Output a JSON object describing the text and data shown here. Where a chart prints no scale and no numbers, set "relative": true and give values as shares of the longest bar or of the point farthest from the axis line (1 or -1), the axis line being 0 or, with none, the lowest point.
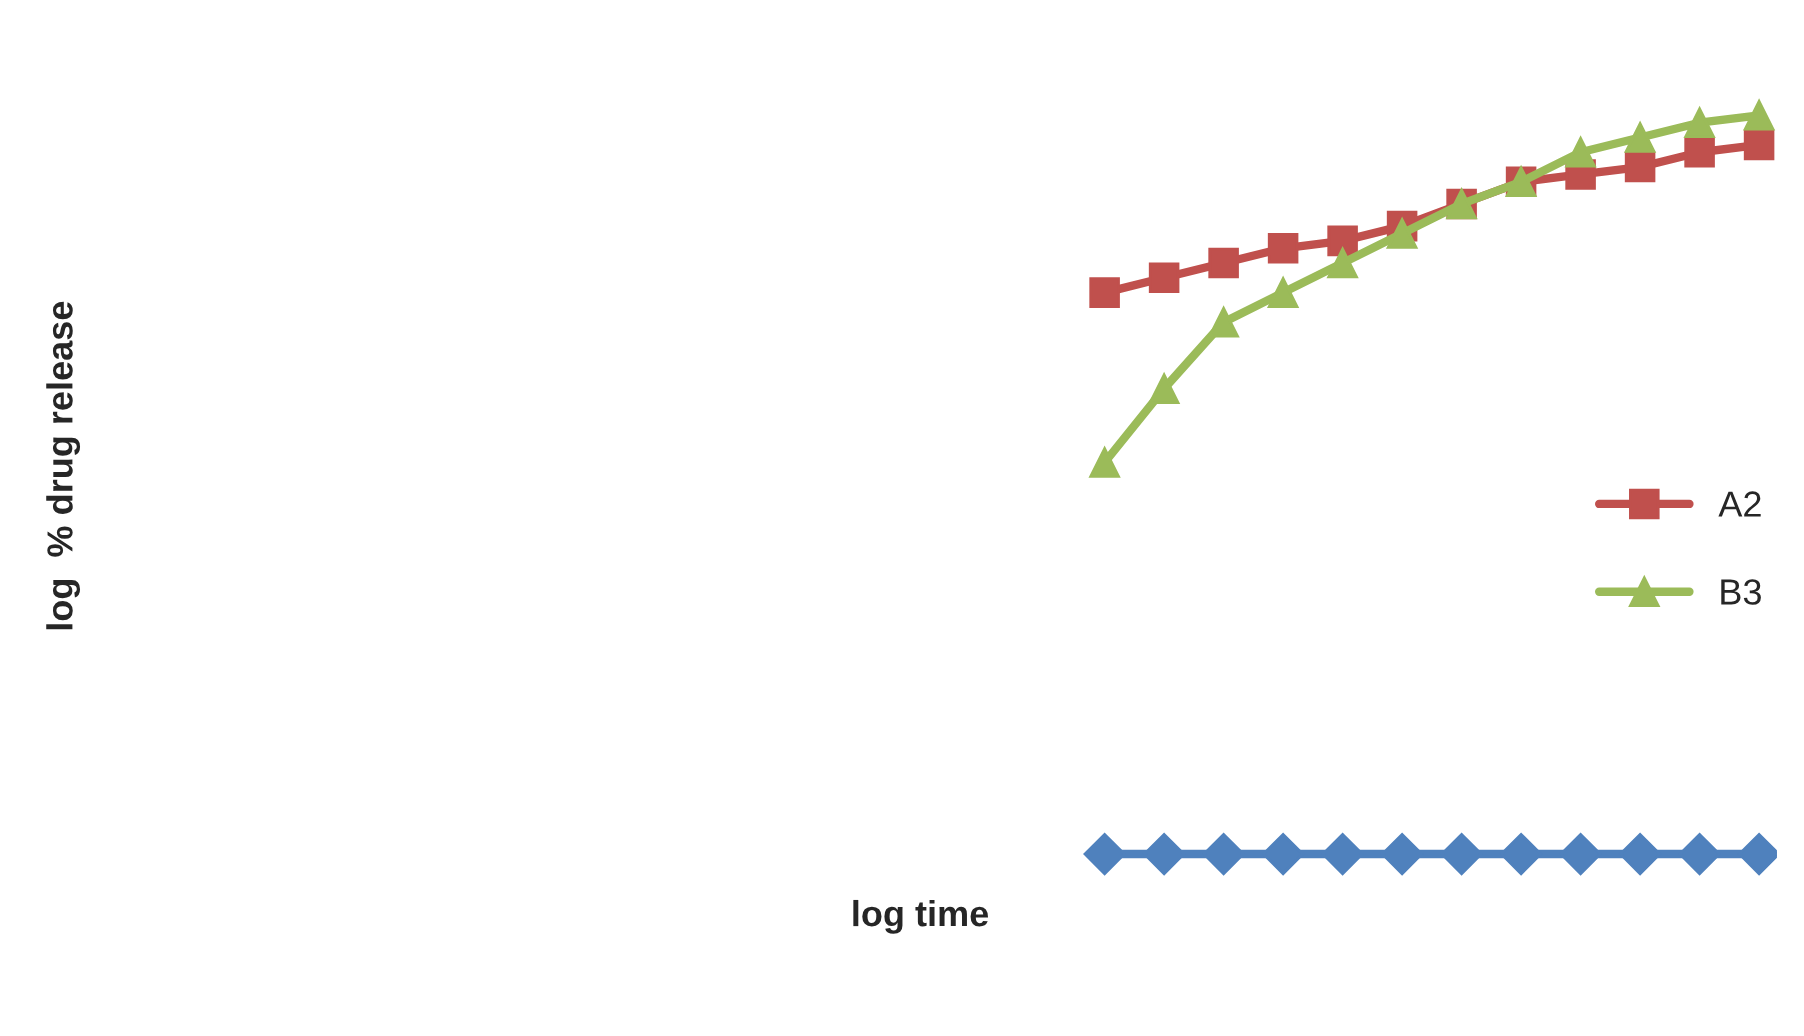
{
  "chart_data": {
    "type": "line",
    "relative": true,
    "annotations": [
      "log time",
      "log  % drug release"
    ],
    "categories": [
      null,
      null,
      null,
      null,
      null,
      null,
      null,
      null,
      null,
      null,
      null,
      null
    ],
    "legend": "right",
    "line_style": "solid",
    "series": [
      {
        "color": "#4f81bd",
        "marker": "diamond",
        "values": [
          0,
          0,
          0,
          0,
          0,
          0,
          0,
          0,
          0,
          0,
          0,
          0
        ]
      },
      {
        "name": "A2",
        "color": "#c0504d",
        "marker": "square",
        "values": [
          0.76,
          0.78,
          0.8,
          0.82,
          0.83,
          0.85,
          0.88,
          0.91,
          0.92,
          0.93,
          0.95,
          0.96
        ]
      },
      {
        "name": "B3",
        "color": "#9bbb59",
        "marker": "triangle",
        "values": [
          0.53,
          0.63,
          0.72,
          0.76,
          0.8,
          0.84,
          0.88,
          0.91,
          0.95,
          0.97,
          0.99,
          1.0
        ]
      }
    ]
  }
}
